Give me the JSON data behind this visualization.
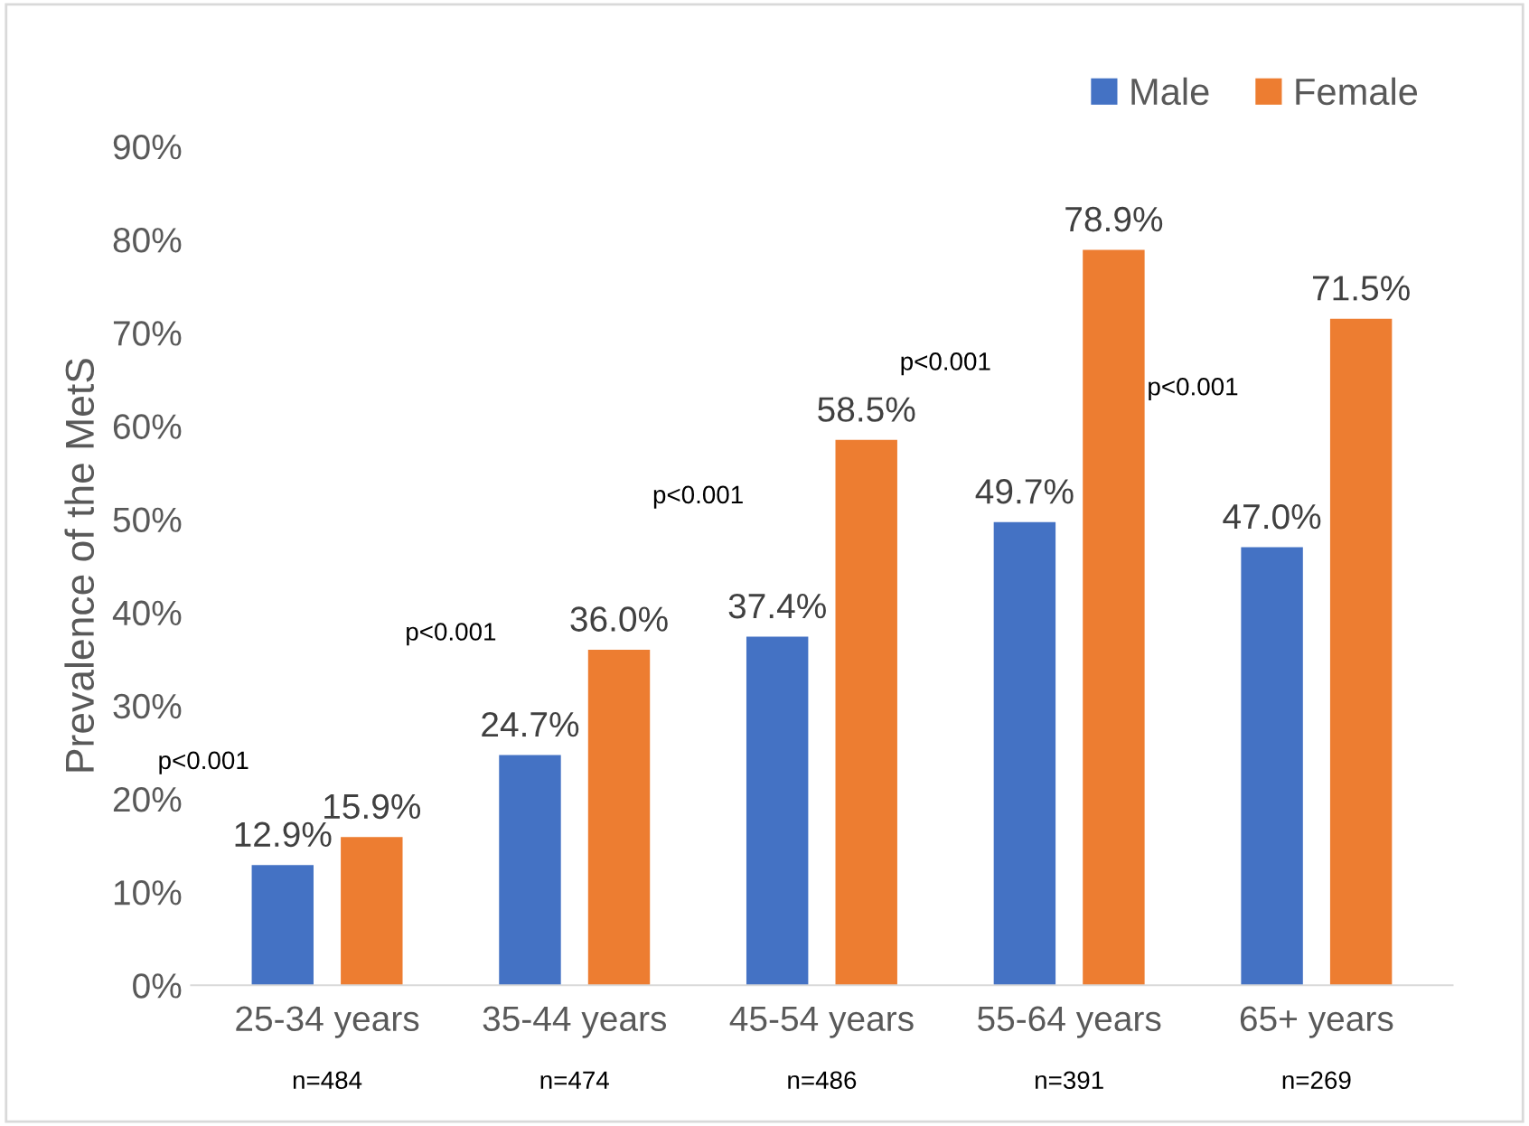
{
  "chart_data": {
    "type": "bar",
    "ylabel": "Prevalence of the MetS",
    "categories": [
      "25-34 years",
      "35-44 years",
      "45-54 years",
      "55-64 years",
      "65+ years"
    ],
    "series": [
      {
        "name": "Male",
        "color": "#4472c4",
        "values": [
          12.9,
          24.7,
          37.4,
          49.7,
          47.0
        ],
        "value_labels": [
          "12.9%",
          "24.7%",
          "37.4%",
          "49.7%",
          "47.0%"
        ]
      },
      {
        "name": "Female",
        "color": "#ed7d31",
        "values": [
          15.9,
          36.0,
          58.5,
          78.9,
          71.5
        ],
        "value_labels": [
          "15.9%",
          "36.0%",
          "58.5%",
          "78.9%",
          "71.5%"
        ]
      }
    ],
    "ylim": [
      0,
      90
    ],
    "yticks": [
      {
        "value": 0,
        "label": "0%"
      },
      {
        "value": 10,
        "label": "10%"
      },
      {
        "value": 20,
        "label": "20%"
      },
      {
        "value": 30,
        "label": "30%"
      },
      {
        "value": 40,
        "label": "40%"
      },
      {
        "value": 50,
        "label": "50%"
      },
      {
        "value": 60,
        "label": "60%"
      },
      {
        "value": 70,
        "label": "70%"
      },
      {
        "value": 80,
        "label": "80%"
      },
      {
        "value": 90,
        "label": "90%"
      }
    ],
    "grid": false,
    "legend": "top right",
    "annotations": [
      "p<0.001",
      "p<0.001",
      "p<0.001",
      "p<0.001",
      "p<0.001",
      "n=484",
      "n=474",
      "n=486",
      "n=391",
      "n=269"
    ]
  }
}
